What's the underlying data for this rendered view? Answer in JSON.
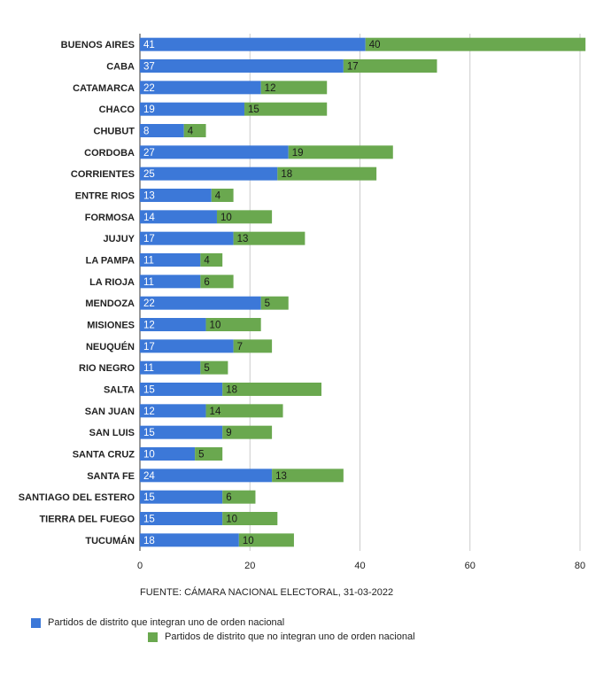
{
  "chart_data": {
    "type": "bar",
    "orientation": "horizontal",
    "stacked": true,
    "categories": [
      "BUENOS AIRES",
      "CABA",
      "CATAMARCA",
      "CHACO",
      "CHUBUT",
      "CORDOBA",
      "CORRIENTES",
      "ENTRE RIOS",
      "FORMOSA",
      "JUJUY",
      "LA PAMPA",
      "LA RIOJA",
      "MENDOZA",
      "MISIONES",
      "NEUQUÉN",
      "RIO NEGRO",
      "SALTA",
      "SAN JUAN",
      "SAN LUIS",
      "SANTA CRUZ",
      "SANTA FE",
      "SANTIAGO DEL ESTERO",
      "TIERRA DEL FUEGO",
      "TUCUMÁN"
    ],
    "series": [
      {
        "name": "Partidos de distrito que integran uno de orden nacional",
        "color": "#3c78d8",
        "values": [
          41,
          37,
          22,
          19,
          8,
          27,
          25,
          13,
          14,
          17,
          11,
          11,
          22,
          12,
          17,
          11,
          15,
          12,
          15,
          10,
          24,
          15,
          15,
          18
        ]
      },
      {
        "name": "Partidos de distrito que no integran uno de orden nacional",
        "color": "#6aa84f",
        "values": [
          40,
          17,
          12,
          15,
          4,
          19,
          18,
          4,
          10,
          13,
          4,
          6,
          5,
          10,
          7,
          5,
          18,
          14,
          9,
          5,
          13,
          6,
          10,
          10
        ]
      }
    ],
    "xlabel": "FUENTE: CÁMARA NACIONAL ELECTORAL, 31-03-2022",
    "ylabel": "",
    "title": "",
    "xlim": [
      0,
      80
    ],
    "xticks": [
      0,
      20,
      40,
      60,
      80
    ],
    "grid": true,
    "legend_position": "bottom-left",
    "data_labels": true
  }
}
